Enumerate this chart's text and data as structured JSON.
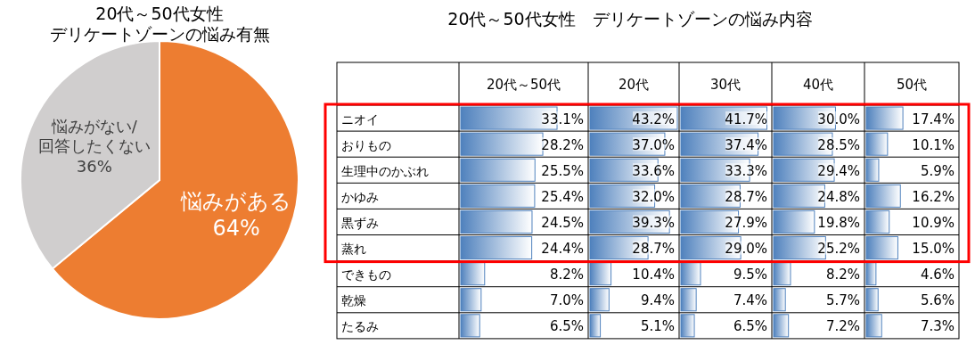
{
  "chart_data": [
    {
      "type": "pie",
      "title": "20代～50代女性",
      "subtitle": "デリケートゾーンの悩み有無",
      "categories": [
        "悩みがある",
        "悩みがない/\n回答したくない"
      ],
      "values": [
        64,
        36
      ],
      "colors": [
        "#ed7d31",
        "#d0cece"
      ],
      "value_labels": [
        "64%",
        "36%"
      ]
    },
    {
      "type": "other",
      "title": "20代～50代女性　デリケートゾーンの悩み内容"
    },
    {
      "type": "bar",
      "orientation": "horizontal",
      "title": "20代～50代",
      "categories": [
        "ニオイ",
        "おりもの",
        "生理中のかぶれ",
        "かゆみ",
        "黒ずみ",
        "蒸れ",
        "できもの",
        "乾燥",
        "たるみ"
      ],
      "tick_labels": "y",
      "color": "#4f81bd",
      "values": [
        33.1,
        28.2,
        25.5,
        25.4,
        24.5,
        24.4,
        8.2,
        7.0,
        6.5
      ],
      "value_labels": [
        "33.1%",
        "28.2%",
        "25.5%",
        "25.4%",
        "24.5%",
        "24.4%",
        "8.2%",
        "7.0%",
        "6.5%"
      ]
    },
    {
      "type": "bar",
      "orientation": "horizontal",
      "title": "20代",
      "categories": [
        "ニオイ",
        "おりもの",
        "生理中のかぶれ",
        "かゆみ",
        "黒ずみ",
        "蒸れ",
        "できもの",
        "乾燥",
        "たるみ"
      ],
      "tick_labels": false,
      "color": "#4f81bd",
      "values": [
        43.2,
        37.0,
        33.6,
        32.0,
        39.3,
        28.7,
        10.4,
        9.4,
        5.1
      ],
      "value_labels": [
        "43.2%",
        "37.0%",
        "33.6%",
        "32.0%",
        "39.3%",
        "28.7%",
        "10.4%",
        "9.4%",
        "5.1%"
      ]
    },
    {
      "type": "bar",
      "orientation": "horizontal",
      "title": "30代",
      "categories": [
        "ニオイ",
        "おりもの",
        "生理中のかぶれ",
        "かゆみ",
        "黒ずみ",
        "蒸れ",
        "できもの",
        "乾燥",
        "たるみ"
      ],
      "tick_labels": false,
      "color": "#4f81bd",
      "values": [
        41.7,
        37.4,
        33.3,
        28.7,
        27.9,
        29.0,
        9.5,
        7.4,
        6.5
      ],
      "value_labels": [
        "41.7%",
        "37.4%",
        "33.3%",
        "28.7%",
        "27.9%",
        "29.0%",
        "9.5%",
        "7.4%",
        "6.5%"
      ]
    },
    {
      "type": "bar",
      "orientation": "horizontal",
      "title": "40代",
      "categories": [
        "ニオイ",
        "おりもの",
        "生理中のかぶれ",
        "かゆみ",
        "黒ずみ",
        "蒸れ",
        "できもの",
        "乾燥",
        "たるみ"
      ],
      "tick_labels": false,
      "color": "#4f81bd",
      "values": [
        30.0,
        28.5,
        29.4,
        24.8,
        19.8,
        25.2,
        8.2,
        5.7,
        7.2
      ],
      "value_labels": [
        "30.0%",
        "28.5%",
        "29.4%",
        "24.8%",
        "19.8%",
        "25.2%",
        "8.2%",
        "5.7%",
        "7.2%"
      ]
    },
    {
      "type": "bar",
      "orientation": "horizontal",
      "title": "50代",
      "categories": [
        "ニオイ",
        "おりもの",
        "生理中のかぶれ",
        "かゆみ",
        "黒ずみ",
        "蒸れ",
        "できもの",
        "乾燥",
        "たるみ"
      ],
      "tick_labels": false,
      "color": "#4f81bd",
      "values": [
        17.4,
        10.1,
        5.9,
        16.2,
        10.9,
        15.0,
        4.6,
        5.6,
        7.3
      ],
      "value_labels": [
        "17.4%",
        "10.1%",
        "5.9%",
        "16.2%",
        "10.9%",
        "15.0%",
        "4.6%",
        "5.6%",
        "7.3%"
      ]
    }
  ]
}
